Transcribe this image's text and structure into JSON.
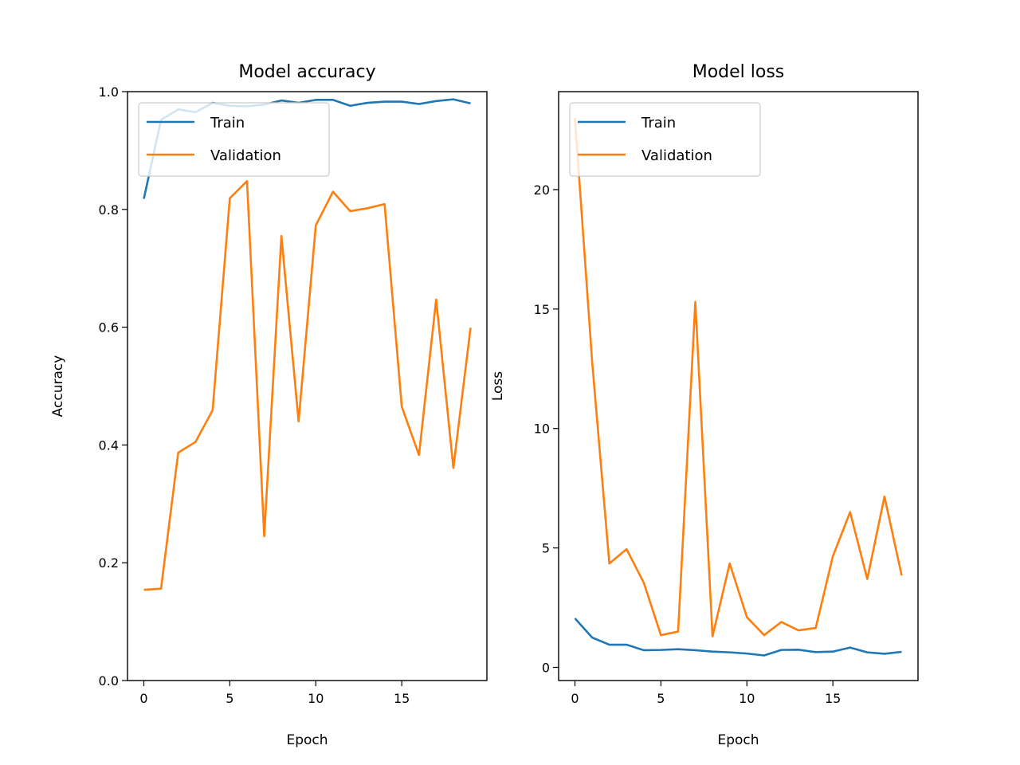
{
  "chart_data": [
    {
      "type": "line",
      "title": "Model accuracy",
      "xlabel": "Epoch",
      "ylabel": "Accuracy",
      "xlim": [
        -0.95,
        19.95
      ],
      "ylim": [
        0,
        1.0
      ],
      "xticks": [
        0,
        5,
        10,
        15
      ],
      "xtick_labels": [
        "0",
        "5",
        "10",
        "15"
      ],
      "yticks": [
        0,
        0.2,
        0.4,
        0.6,
        0.8,
        1.0
      ],
      "ytick_labels": [
        "0.0",
        "0.2",
        "0.4",
        "0.6",
        "0.8",
        "1.0"
      ],
      "grid": false,
      "legend_position": "upper-left",
      "x": [
        0,
        1,
        2,
        3,
        4,
        5,
        6,
        7,
        8,
        9,
        10,
        11,
        12,
        13,
        14,
        15,
        16,
        17,
        18,
        19
      ],
      "series": [
        {
          "name": "Train",
          "color": "#1f77b4",
          "values": [
            0.818,
            0.952,
            0.97,
            0.965,
            0.981,
            0.976,
            0.975,
            0.978,
            0.985,
            0.981,
            0.986,
            0.986,
            0.976,
            0.981,
            0.983,
            0.983,
            0.979,
            0.984,
            0.987,
            0.98
          ]
        },
        {
          "name": "Validation",
          "color": "#ff7f0e",
          "values": [
            0.154,
            0.156,
            0.387,
            0.405,
            0.459,
            0.819,
            0.848,
            0.245,
            0.755,
            0.44,
            0.773,
            0.83,
            0.797,
            0.802,
            0.809,
            0.465,
            0.383,
            0.647,
            0.361,
            0.599
          ]
        }
      ]
    },
    {
      "type": "line",
      "title": "Model loss",
      "xlabel": "Epoch",
      "ylabel": "Loss",
      "xlim": [
        -0.95,
        19.95
      ],
      "ylim": [
        -0.55,
        24.1
      ],
      "xticks": [
        0,
        5,
        10,
        15
      ],
      "xtick_labels": [
        "0",
        "5",
        "10",
        "15"
      ],
      "yticks": [
        0,
        5,
        10,
        15,
        20
      ],
      "ytick_labels": [
        "0",
        "5",
        "10",
        "15",
        "20"
      ],
      "grid": false,
      "legend_position": "upper-left",
      "x": [
        0,
        1,
        2,
        3,
        4,
        5,
        6,
        7,
        8,
        9,
        10,
        11,
        12,
        13,
        14,
        15,
        16,
        17,
        18,
        19
      ],
      "series": [
        {
          "name": "Train",
          "color": "#1f77b4",
          "values": [
            2.05,
            1.25,
            0.95,
            0.95,
            0.72,
            0.73,
            0.76,
            0.72,
            0.66,
            0.63,
            0.58,
            0.5,
            0.73,
            0.74,
            0.64,
            0.66,
            0.83,
            0.63,
            0.57,
            0.65
          ]
        },
        {
          "name": "Validation",
          "color": "#ff7f0e",
          "values": [
            23.0,
            12.8,
            4.35,
            4.95,
            3.55,
            1.35,
            1.5,
            15.3,
            1.3,
            4.35,
            2.1,
            1.35,
            1.9,
            1.55,
            1.65,
            4.65,
            6.5,
            3.7,
            7.15,
            3.85
          ]
        }
      ]
    }
  ]
}
